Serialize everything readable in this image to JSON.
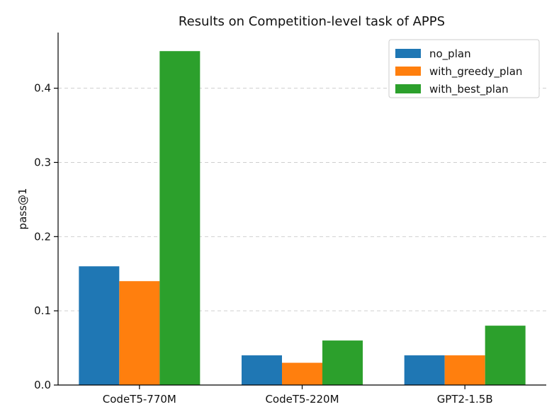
{
  "chart_data": {
    "type": "bar",
    "title": "Results on Competition-level task of APPS",
    "xlabel": "",
    "ylabel": "pass@1",
    "categories": [
      "CodeT5-770M",
      "CodeT5-220M",
      "GPT2-1.5B"
    ],
    "series": [
      {
        "name": "no_plan",
        "color": "#1f77b4",
        "values": [
          0.16,
          0.04,
          0.04
        ]
      },
      {
        "name": "with_greedy_plan",
        "color": "#ff7f0e",
        "values": [
          0.14,
          0.03,
          0.04
        ]
      },
      {
        "name": "with_best_plan",
        "color": "#2ca02c",
        "values": [
          0.45,
          0.06,
          0.08
        ]
      }
    ],
    "ylim": [
      0,
      0.475
    ],
    "yticks": [
      0.0,
      0.1,
      0.2,
      0.3,
      0.4
    ],
    "ytick_labels": [
      "0.0",
      "0.1",
      "0.2",
      "0.3",
      "0.4"
    ],
    "grid": "y",
    "legend": "top-right"
  }
}
